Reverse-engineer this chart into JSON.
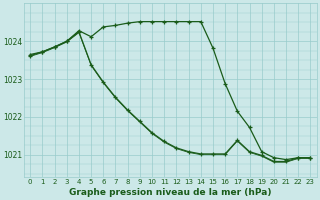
{
  "background_color": "#cce8e8",
  "grid_color": "#99cccc",
  "line_color": "#1a5c1a",
  "xlabel": "Graphe pression niveau de la mer (hPa)",
  "xlabel_fontsize": 6.5,
  "ylabel_ticks": [
    1021,
    1022,
    1023,
    1024
  ],
  "xlim": [
    -0.5,
    23.5
  ],
  "ylim": [
    1020.4,
    1025.0
  ],
  "hours": [
    0,
    1,
    2,
    3,
    4,
    5,
    6,
    7,
    8,
    9,
    10,
    11,
    12,
    13,
    14,
    15,
    16,
    17,
    18,
    19,
    20,
    21,
    22,
    23
  ],
  "series1": [
    1023.65,
    1023.72,
    1023.85,
    1024.0,
    1024.28,
    1024.12,
    1024.38,
    1024.42,
    1024.48,
    1024.52,
    1024.52,
    1024.52,
    1024.52,
    1024.52,
    1024.52,
    1023.82,
    1022.88,
    1022.15,
    1021.72,
    1021.08,
    1020.92,
    1020.87,
    1020.92,
    1020.92
  ],
  "series2": [
    1023.62,
    1023.72,
    1023.85,
    1024.0,
    1024.25,
    1023.38,
    1022.92,
    1022.52,
    1022.18,
    1021.88,
    1021.58,
    1021.35,
    1021.18,
    1021.08,
    1021.02,
    1021.02,
    1021.02,
    1021.38,
    1021.08,
    1020.98,
    1020.82,
    1020.82,
    1020.92,
    1020.92
  ],
  "series2b": [
    1023.6,
    1023.7,
    1023.83,
    1023.98,
    1024.23,
    1023.36,
    1022.9,
    1022.5,
    1022.16,
    1021.86,
    1021.56,
    1021.33,
    1021.16,
    1021.06,
    1021.0,
    1021.0,
    1021.0,
    1021.36,
    1021.06,
    1020.96,
    1020.8,
    1020.8,
    1020.9,
    1020.9
  ]
}
